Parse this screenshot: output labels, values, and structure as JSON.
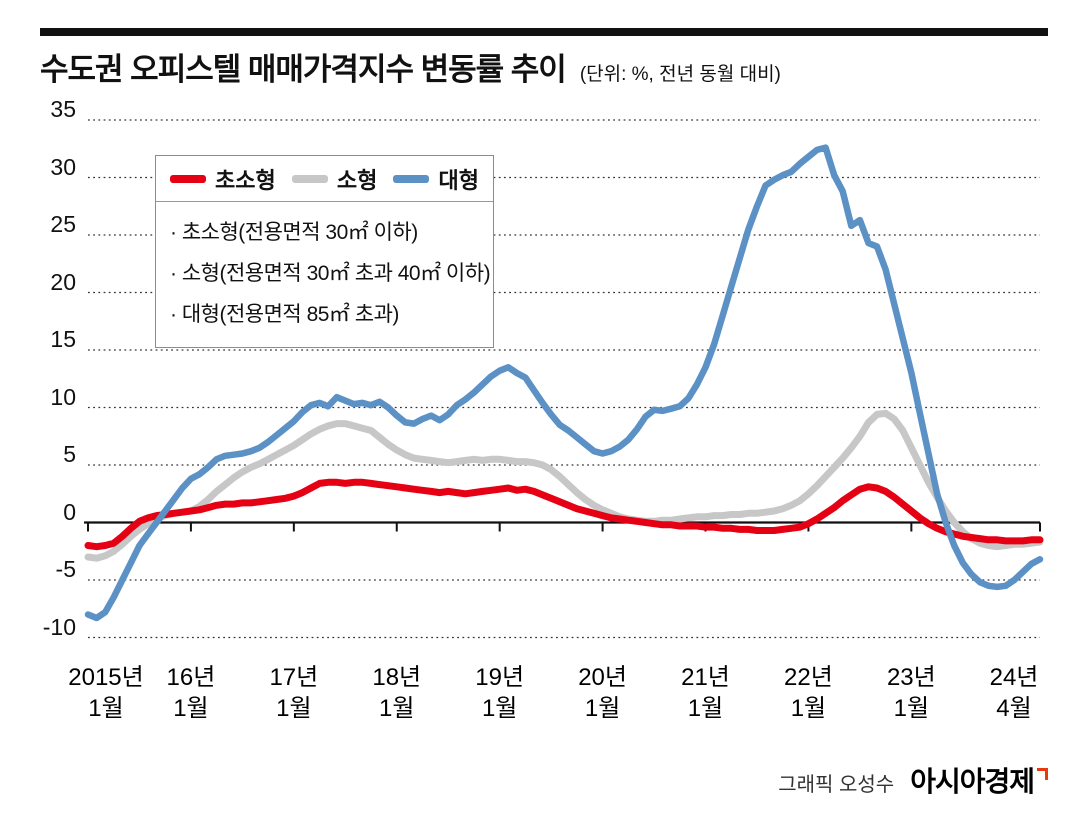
{
  "title": {
    "text": "수도권 오피스텔 매매가격지수 변동률 추이",
    "unit": "(단위: %, 전년 동월 대비)"
  },
  "legend": {
    "items": [
      {
        "label": "초소형",
        "color": "#e60013"
      },
      {
        "label": "소형",
        "color": "#c7c7c7"
      },
      {
        "label": "대형",
        "color": "#5b91c5"
      }
    ],
    "notes": [
      "· 초소형(전용면적 30㎡ 이하)",
      "· 소형(전용면적 30㎡ 초과 40㎡ 이하)",
      "· 대형(전용면적 85㎡ 초과)"
    ]
  },
  "footer": {
    "credit": "그래픽 오성수",
    "brand": "아시아경제",
    "brand_mark": "red-corner-mark",
    "brand_mark_color": "#e8380d"
  },
  "chart_data": {
    "type": "line",
    "title": "수도권 오피스텔 매매가격지수 변동률 추이",
    "unit": "%, 전년 동월 대비",
    "x": {
      "start": "2015-01",
      "end": "2024-04",
      "step": "1 month",
      "n": 112
    },
    "x_ticks": [
      {
        "index": 0,
        "label": [
          "2015년",
          "1월"
        ]
      },
      {
        "index": 12,
        "label": [
          "16년",
          "1월"
        ]
      },
      {
        "index": 24,
        "label": [
          "17년",
          "1월"
        ]
      },
      {
        "index": 36,
        "label": [
          "18년",
          "1월"
        ]
      },
      {
        "index": 48,
        "label": [
          "19년",
          "1월"
        ]
      },
      {
        "index": 60,
        "label": [
          "20년",
          "1월"
        ]
      },
      {
        "index": 72,
        "label": [
          "21년",
          "1월"
        ]
      },
      {
        "index": 84,
        "label": [
          "22년",
          "1월"
        ]
      },
      {
        "index": 96,
        "label": [
          "23년",
          "1월"
        ]
      },
      {
        "index": 111,
        "label": [
          "24년",
          "4월"
        ]
      }
    ],
    "ylim": [
      -10,
      35
    ],
    "yticks": [
      35,
      30,
      25,
      20,
      15,
      10,
      5,
      0,
      -5,
      -10
    ],
    "grid": "dotted horizontal lines, solid axis at zero",
    "legend_position": "top-left",
    "series": [
      {
        "name": "초소형",
        "color": "#e60013",
        "values": [
          -2.0,
          -2.1,
          -2.0,
          -1.8,
          -1.2,
          -0.5,
          0.1,
          0.4,
          0.6,
          0.7,
          0.8,
          0.9,
          1.0,
          1.1,
          1.3,
          1.5,
          1.6,
          1.6,
          1.7,
          1.7,
          1.8,
          1.9,
          2.0,
          2.1,
          2.3,
          2.6,
          3.0,
          3.4,
          3.5,
          3.5,
          3.4,
          3.5,
          3.5,
          3.4,
          3.3,
          3.2,
          3.1,
          3.0,
          2.9,
          2.8,
          2.7,
          2.6,
          2.7,
          2.6,
          2.5,
          2.6,
          2.7,
          2.8,
          2.9,
          3.0,
          2.8,
          2.9,
          2.7,
          2.4,
          2.1,
          1.8,
          1.5,
          1.2,
          1.0,
          0.8,
          0.6,
          0.4,
          0.3,
          0.2,
          0.1,
          0.0,
          -0.1,
          -0.2,
          -0.2,
          -0.3,
          -0.3,
          -0.3,
          -0.4,
          -0.4,
          -0.5,
          -0.5,
          -0.6,
          -0.6,
          -0.7,
          -0.7,
          -0.7,
          -0.6,
          -0.5,
          -0.4,
          -0.1,
          0.3,
          0.8,
          1.3,
          1.9,
          2.4,
          2.9,
          3.1,
          3.0,
          2.7,
          2.2,
          1.6,
          1.0,
          0.4,
          -0.1,
          -0.5,
          -0.8,
          -1.0,
          -1.2,
          -1.3,
          -1.4,
          -1.5,
          -1.5,
          -1.6,
          -1.6,
          -1.6,
          -1.5,
          -1.5
        ]
      },
      {
        "name": "소형",
        "color": "#c7c7c7",
        "values": [
          -3.0,
          -3.1,
          -2.9,
          -2.5,
          -1.9,
          -1.2,
          -0.6,
          -0.1,
          0.3,
          0.6,
          0.8,
          0.9,
          1.0,
          1.4,
          2.0,
          2.7,
          3.3,
          3.9,
          4.4,
          4.8,
          5.1,
          5.5,
          5.9,
          6.3,
          6.7,
          7.2,
          7.7,
          8.1,
          8.4,
          8.6,
          8.6,
          8.4,
          8.2,
          8.0,
          7.4,
          6.8,
          6.3,
          5.9,
          5.6,
          5.5,
          5.4,
          5.3,
          5.2,
          5.3,
          5.4,
          5.5,
          5.4,
          5.5,
          5.5,
          5.4,
          5.3,
          5.3,
          5.2,
          5.0,
          4.6,
          4.0,
          3.3,
          2.6,
          2.0,
          1.5,
          1.1,
          0.8,
          0.5,
          0.3,
          0.2,
          0.1,
          0.1,
          0.2,
          0.2,
          0.3,
          0.4,
          0.5,
          0.5,
          0.6,
          0.6,
          0.7,
          0.7,
          0.8,
          0.8,
          0.9,
          1.0,
          1.2,
          1.5,
          1.9,
          2.5,
          3.2,
          4.0,
          4.8,
          5.6,
          6.5,
          7.5,
          8.7,
          9.4,
          9.5,
          9.0,
          8.0,
          6.5,
          5.0,
          3.5,
          2.2,
          1.0,
          0.0,
          -0.8,
          -1.4,
          -1.8,
          -2.0,
          -2.1,
          -2.0,
          -1.9,
          -1.9,
          -1.8,
          -1.7
        ]
      },
      {
        "name": "대형",
        "color": "#5b91c5",
        "values": [
          -8.0,
          -8.3,
          -7.8,
          -6.5,
          -5.0,
          -3.5,
          -2.0,
          -1.0,
          0.0,
          1.0,
          2.0,
          3.0,
          3.8,
          4.2,
          4.8,
          5.5,
          5.8,
          5.9,
          6.0,
          6.2,
          6.5,
          7.0,
          7.6,
          8.2,
          8.8,
          9.6,
          10.2,
          10.4,
          10.1,
          10.9,
          10.6,
          10.3,
          10.4,
          10.2,
          10.5,
          10.0,
          9.3,
          8.7,
          8.6,
          9.0,
          9.3,
          8.9,
          9.4,
          10.2,
          10.7,
          11.3,
          12.0,
          12.7,
          13.2,
          13.5,
          13.0,
          12.6,
          11.5,
          10.4,
          9.4,
          8.5,
          8.0,
          7.4,
          6.8,
          6.2,
          6.0,
          6.2,
          6.6,
          7.2,
          8.1,
          9.2,
          9.8,
          9.7,
          9.9,
          10.1,
          10.8,
          12.0,
          13.5,
          15.5,
          18.0,
          20.5,
          23.0,
          25.5,
          27.5,
          29.3,
          29.8,
          30.2,
          30.5,
          31.2,
          31.8,
          32.4,
          32.6,
          30.2,
          28.8,
          25.8,
          26.3,
          24.3,
          24.0,
          22.0,
          19.0,
          16.0,
          13.0,
          9.5,
          6.0,
          2.5,
          0.0,
          -2.0,
          -3.5,
          -4.5,
          -5.2,
          -5.5,
          -5.6,
          -5.5,
          -5.0,
          -4.3,
          -3.6,
          -3.2
        ]
      }
    ]
  }
}
